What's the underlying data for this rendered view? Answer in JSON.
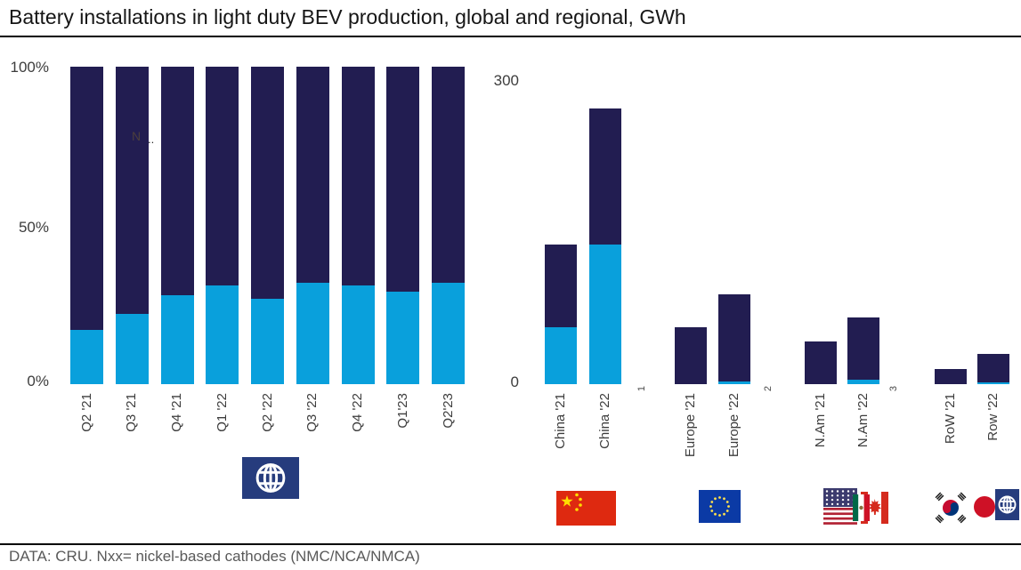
{
  "title": "Battery installations in light duty BEV production, global and regional, GWh",
  "footer": {
    "source_note": "DATA: CRU. Nxx= nickel-based cathodes (NMC/NCA/NMCA)"
  },
  "colors": {
    "nxx_dark_navy": "#221D51",
    "light_blue": "#09A0DC",
    "axis_text": "#3d3d3d",
    "footer_text": "#595959",
    "rule_black": "#000000",
    "globe_icon_navy": "#263C7D",
    "china_flag_red": "#DE2910",
    "eu_flag_blue": "#0B3AA5",
    "us_canton_navy": "#3C3B6E",
    "stripe_red": "#B22234",
    "canada_red": "#D52B1E",
    "korea_taegeuk_red": "#C60C30",
    "korea_taegeuk_blue": "#003478",
    "japan_red": "#CE1126"
  },
  "icons": {
    "global": "globe-icon",
    "china": "china-flag",
    "europe": "eu-flag",
    "north_america": [
      "us-flag",
      "mexico-flag",
      "canada-flag"
    ],
    "rest_of_world": [
      "south-korea-flag",
      "japan-flag",
      "globe-icon"
    ]
  },
  "chart_data": [
    {
      "type": "bar",
      "variant": "100-percent-stacked",
      "unit": "% share",
      "categories": [
        "Q2 '21",
        "Q3 '21",
        "Q4 '21",
        "Q1 '22",
        "Q2 '22",
        "Q3 '22",
        "Q4 '22",
        "Q1'23",
        "Q2'23"
      ],
      "series": [
        {
          "name": "nxx-dark-navy-segment",
          "color": "#221D51",
          "values": [
            83,
            78,
            72,
            69,
            73,
            68,
            69,
            71,
            68
          ]
        },
        {
          "name": "light-blue-segment",
          "color": "#09A0DC",
          "values": [
            17,
            22,
            28,
            31,
            27,
            32,
            31,
            29,
            32
          ]
        }
      ],
      "stack_order": "first-series-on-top",
      "yticks": [
        "100%",
        "50%",
        "0%"
      ],
      "ylim": [
        0,
        100
      ],
      "grid": false,
      "legend": "none",
      "annotation": {
        "n": "N",
        "dots": ".."
      },
      "region_icon": "globe-icon"
    },
    {
      "type": "bar",
      "variant": "stacked",
      "unit": "GWh",
      "categories": [
        "China '21",
        "China '22",
        "Europe '21",
        "Europe '22",
        "N.Am '21",
        "N.Am '22",
        "RoW '21",
        "Row '22"
      ],
      "series": [
        {
          "name": "nxx-dark-navy-segment",
          "color": "#221D51",
          "values": [
            81,
            133,
            56,
            85,
            42,
            61,
            15,
            28
          ]
        },
        {
          "name": "light-blue-segment",
          "color": "#09A0DC",
          "values": [
            56,
            137,
            0,
            3,
            0,
            4,
            0,
            2
          ]
        }
      ],
      "totals": [
        137,
        270,
        56,
        88,
        42,
        65,
        15,
        30
      ],
      "stack_order": "first-series-on-top",
      "yticks": [
        "300",
        "0"
      ],
      "ylim": [
        0,
        300
      ],
      "grid": false,
      "legend": "none",
      "spacer_labels": [
        "1",
        "2",
        "3"
      ]
    }
  ]
}
